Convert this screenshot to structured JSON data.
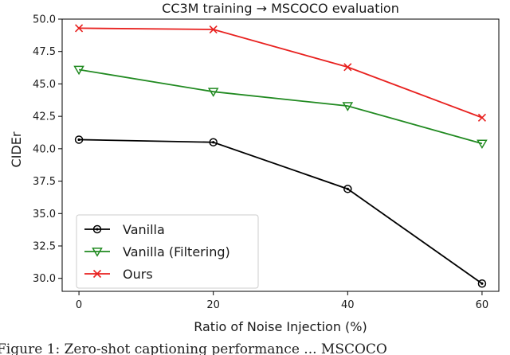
{
  "caption": "Figure 1: Zero-shot captioning performance ... MSCOCO",
  "chart_data": {
    "type": "line",
    "title": "CC3M training → MSCOCO evaluation",
    "xlabel": "Ratio of Noise Injection (%)",
    "ylabel": "CIDEr",
    "x": [
      0,
      20,
      40,
      60
    ],
    "xlim": [
      -2.5,
      62.5
    ],
    "ylim": [
      29,
      50
    ],
    "xticks": [
      "0",
      "20",
      "40",
      "60"
    ],
    "yticks": [
      "30.0",
      "32.5",
      "35.0",
      "37.5",
      "40.0",
      "42.5",
      "45.0",
      "47.5",
      "50.0"
    ],
    "grid": false,
    "legend_position": "lower-left",
    "series": [
      {
        "name": "Vanilla",
        "values": [
          40.7,
          40.5,
          36.9,
          29.6
        ],
        "color": "#000000",
        "marker": "circle"
      },
      {
        "name": "Vanilla (Filtering)",
        "values": [
          46.1,
          44.4,
          43.3,
          40.4
        ],
        "color": "#218a21",
        "marker": "triangle-down"
      },
      {
        "name": "Ours",
        "values": [
          49.3,
          49.2,
          46.3,
          42.4
        ],
        "color": "#e8211f",
        "marker": "x"
      }
    ]
  }
}
